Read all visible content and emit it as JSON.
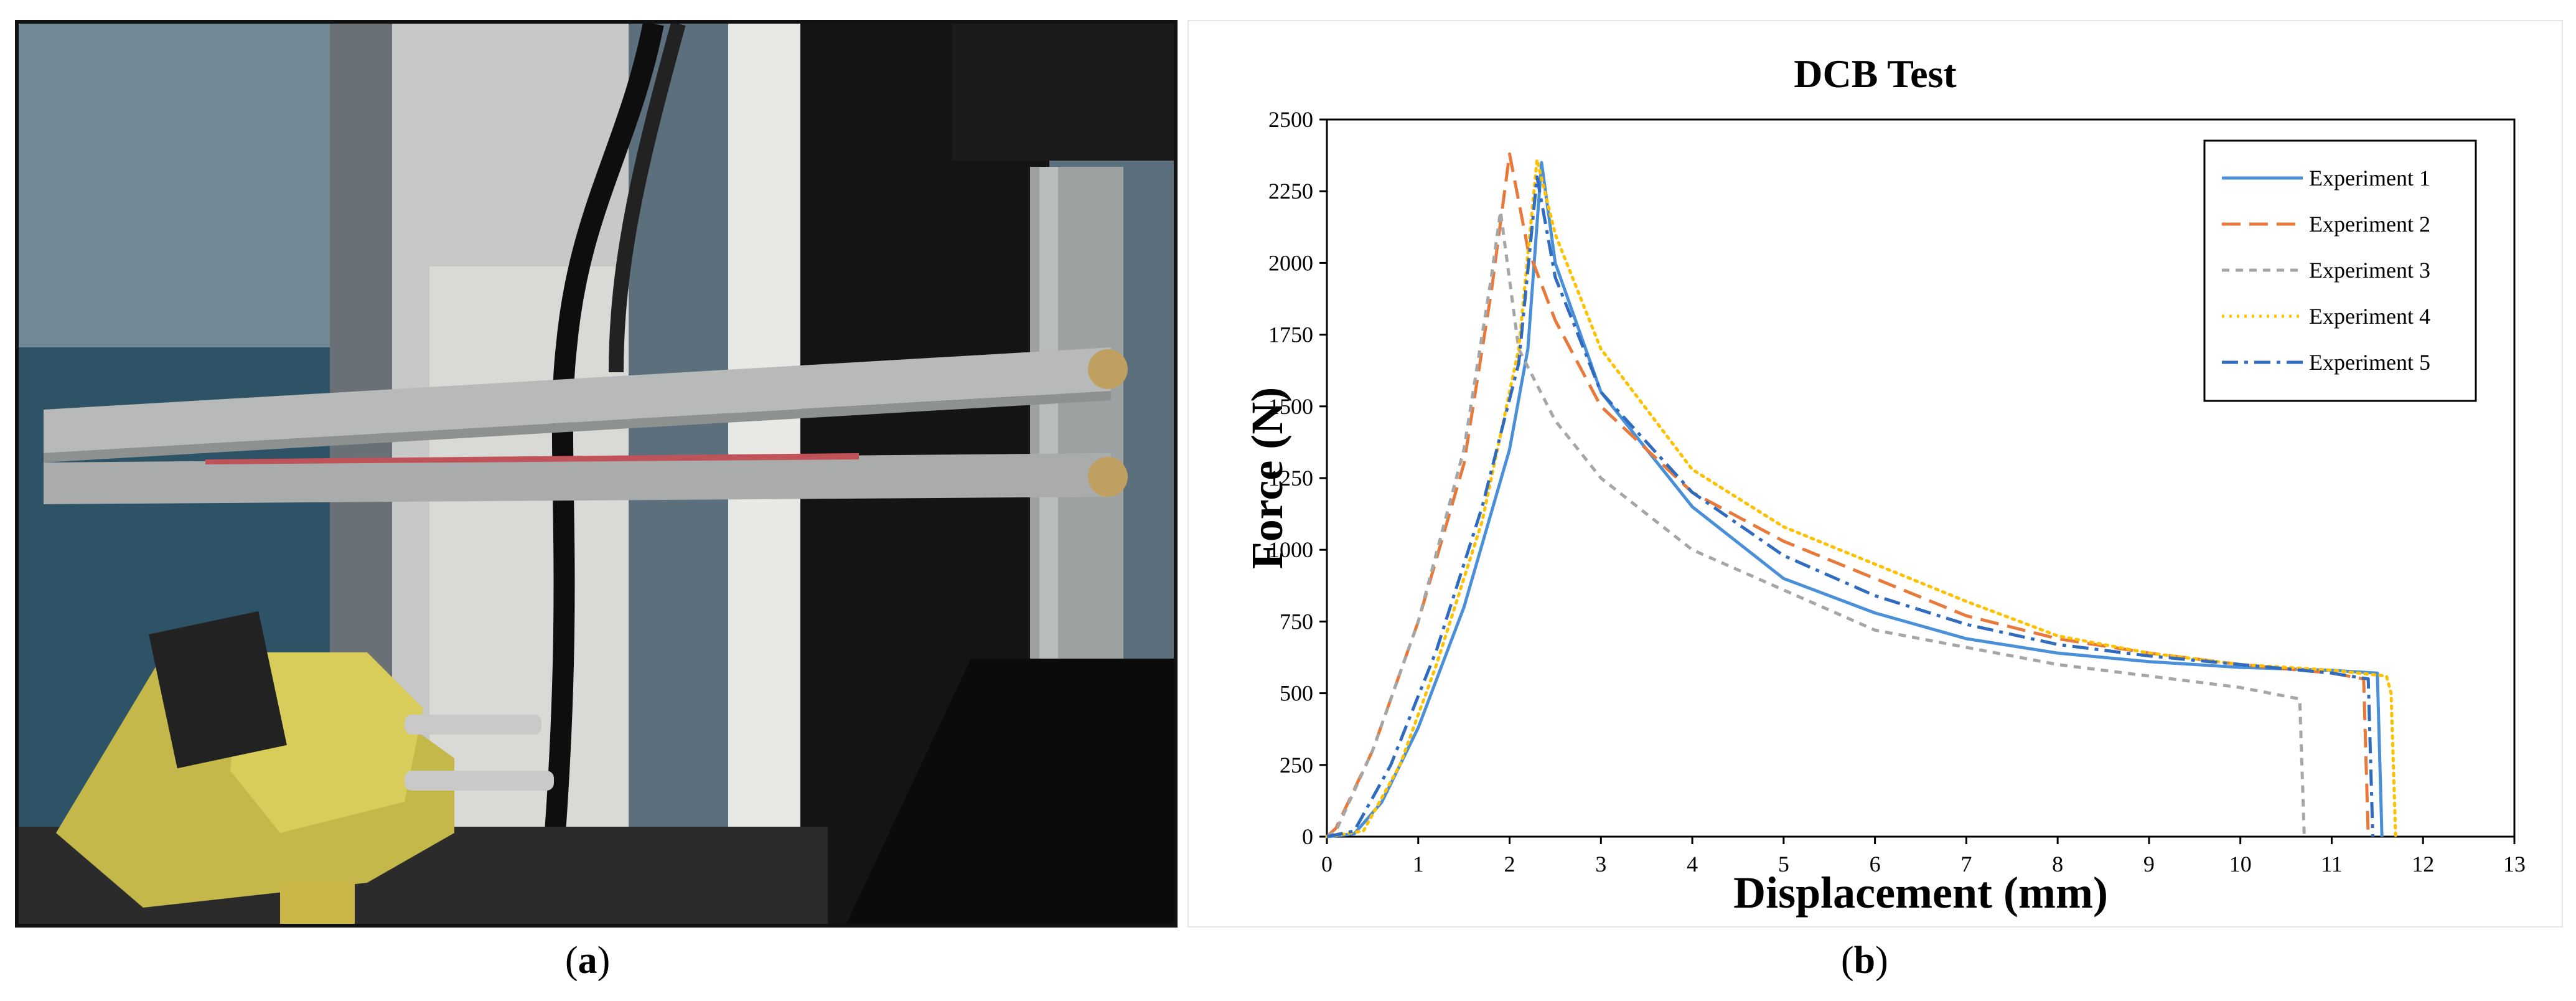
{
  "captions": {
    "a": "a",
    "b": "b"
  },
  "photo": {
    "description_icon": "dcb-test-rig-photo-icon"
  },
  "colors": {
    "exp1": "#4a90d9",
    "exp2": "#e8793a",
    "exp3": "#a6a6a6",
    "exp4": "#ffc000",
    "exp5": "#2f6bbf"
  },
  "chart_data": {
    "type": "line",
    "title": "DCB Test",
    "xlabel": "Displacement  (mm)",
    "ylabel": "Force (N)",
    "xlim": [
      0,
      13
    ],
    "ylim": [
      0,
      2500
    ],
    "xticks": [
      "0",
      "1",
      "2",
      "3",
      "4",
      "5",
      "6",
      "7",
      "8",
      "9",
      "10",
      "11",
      "12",
      "13"
    ],
    "yticks": [
      "0",
      "250",
      "500",
      "750",
      "1000",
      "1250",
      "1500",
      "1750",
      "2000",
      "2250",
      "2500"
    ],
    "grid": false,
    "legend_position": "top-right",
    "series": [
      {
        "name": "Experiment 1",
        "style": "solid",
        "color": "#4a90d9",
        "points": [
          [
            0,
            0
          ],
          [
            0.3,
            10
          ],
          [
            0.6,
            120
          ],
          [
            1,
            380
          ],
          [
            1.5,
            800
          ],
          [
            2,
            1350
          ],
          [
            2.2,
            1700
          ],
          [
            2.35,
            2350
          ],
          [
            2.5,
            2000
          ],
          [
            3,
            1550
          ],
          [
            4,
            1150
          ],
          [
            5,
            900
          ],
          [
            6,
            780
          ],
          [
            7,
            690
          ],
          [
            8,
            640
          ],
          [
            9,
            610
          ],
          [
            10,
            590
          ],
          [
            11,
            580
          ],
          [
            11.5,
            570
          ],
          [
            11.55,
            0
          ]
        ]
      },
      {
        "name": "Experiment 2",
        "style": "dashed",
        "color": "#e8793a",
        "points": [
          [
            0,
            0
          ],
          [
            0.1,
            30
          ],
          [
            0.5,
            300
          ],
          [
            1,
            750
          ],
          [
            1.5,
            1300
          ],
          [
            1.8,
            1900
          ],
          [
            2,
            2380
          ],
          [
            2.2,
            2050
          ],
          [
            2.5,
            1800
          ],
          [
            3,
            1500
          ],
          [
            4,
            1200
          ],
          [
            5,
            1030
          ],
          [
            6,
            900
          ],
          [
            7,
            770
          ],
          [
            8,
            690
          ],
          [
            9,
            640
          ],
          [
            10,
            600
          ],
          [
            11,
            570
          ],
          [
            11.35,
            550
          ],
          [
            11.4,
            0
          ]
        ]
      },
      {
        "name": "Experiment 3",
        "style": "short-dash",
        "color": "#a6a6a6",
        "points": [
          [
            0,
            0
          ],
          [
            0.1,
            20
          ],
          [
            0.5,
            300
          ],
          [
            1,
            750
          ],
          [
            1.5,
            1350
          ],
          [
            1.8,
            1950
          ],
          [
            1.9,
            2180
          ],
          [
            2.1,
            1700
          ],
          [
            2.5,
            1450
          ],
          [
            3,
            1250
          ],
          [
            4,
            1000
          ],
          [
            5,
            860
          ],
          [
            6,
            720
          ],
          [
            7,
            660
          ],
          [
            8,
            600
          ],
          [
            9,
            560
          ],
          [
            10,
            520
          ],
          [
            10.65,
            480
          ],
          [
            10.7,
            0
          ]
        ]
      },
      {
        "name": "Experiment 4",
        "style": "dotted",
        "color": "#ffc000",
        "points": [
          [
            0,
            0
          ],
          [
            0.4,
            20
          ],
          [
            0.8,
            250
          ],
          [
            1.2,
            600
          ],
          [
            1.7,
            1100
          ],
          [
            2.1,
            1700
          ],
          [
            2.3,
            2360
          ],
          [
            2.5,
            2100
          ],
          [
            3,
            1700
          ],
          [
            4,
            1280
          ],
          [
            5,
            1080
          ],
          [
            6,
            950
          ],
          [
            7,
            820
          ],
          [
            8,
            700
          ],
          [
            9,
            640
          ],
          [
            10,
            600
          ],
          [
            11,
            580
          ],
          [
            11.6,
            560
          ],
          [
            11.65,
            500
          ],
          [
            11.7,
            0
          ]
        ]
      },
      {
        "name": "Experiment 5",
        "style": "dash-dot",
        "color": "#2f6bbf",
        "points": [
          [
            0,
            0
          ],
          [
            0.3,
            20
          ],
          [
            0.7,
            250
          ],
          [
            1.2,
            650
          ],
          [
            1.7,
            1150
          ],
          [
            2.1,
            1650
          ],
          [
            2.3,
            2300
          ],
          [
            2.5,
            1950
          ],
          [
            3,
            1550
          ],
          [
            4,
            1200
          ],
          [
            5,
            980
          ],
          [
            6,
            840
          ],
          [
            7,
            740
          ],
          [
            8,
            670
          ],
          [
            9,
            630
          ],
          [
            10,
            600
          ],
          [
            11,
            570
          ],
          [
            11.4,
            550
          ],
          [
            11.45,
            0
          ]
        ]
      }
    ]
  }
}
